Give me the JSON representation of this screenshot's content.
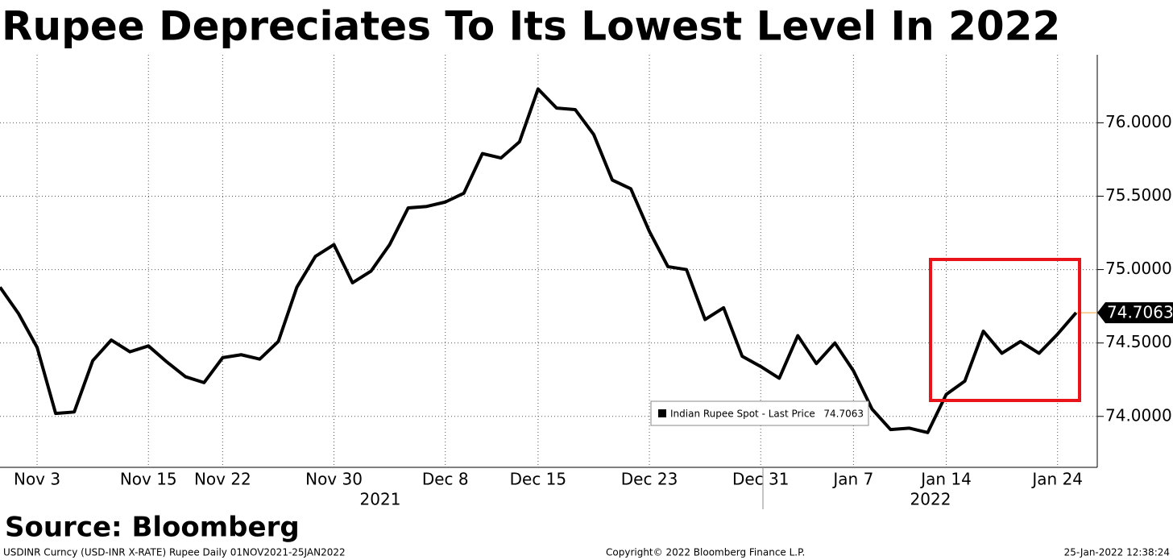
{
  "chart_data": {
    "type": "line",
    "title": "Rupee Depreciates To Its Lowest Level In 2022",
    "source": "Source: Bloomberg",
    "footer_left": "USDINR Curncy (USD-INR X-RATE) Rupee  Daily 01NOV2021-25JAN2022",
    "footer_center": "Copyright© 2022 Bloomberg Finance L.P.",
    "footer_right": "25-Jan-2022 12:38:24",
    "year_labels": [
      "2021",
      "2022"
    ],
    "categories": [
      null,
      null,
      "Nov 3",
      null,
      null,
      null,
      null,
      null,
      "Nov 15",
      null,
      null,
      null,
      "Nov 22",
      null,
      null,
      null,
      null,
      null,
      "Nov 30",
      null,
      null,
      null,
      null,
      null,
      "Dec 8",
      null,
      null,
      null,
      null,
      "Dec 15",
      null,
      null,
      null,
      null,
      null,
      "Dec 23",
      null,
      null,
      null,
      null,
      null,
      "Dec 31",
      null,
      null,
      null,
      null,
      "Jan 7",
      null,
      null,
      null,
      null,
      "Jan 14",
      null,
      null,
      null,
      null,
      null,
      "Jan 24",
      null
    ],
    "series": [
      {
        "name": "Indian Rupee Spot - Last Price",
        "color": "#000000",
        "values": [
          74.88,
          74.7,
          74.47,
          74.02,
          74.03,
          74.38,
          74.52,
          74.44,
          74.48,
          74.37,
          74.27,
          74.23,
          74.4,
          74.42,
          74.39,
          74.51,
          74.88,
          75.09,
          75.17,
          74.91,
          74.99,
          75.17,
          75.42,
          75.43,
          75.46,
          75.52,
          75.79,
          75.76,
          75.87,
          76.23,
          76.1,
          76.09,
          75.92,
          75.61,
          75.55,
          75.26,
          75.02,
          75.0,
          74.66,
          74.74,
          74.41,
          74.34,
          74.26,
          74.55,
          74.36,
          74.5,
          74.31,
          74.05,
          73.91,
          73.92,
          73.89,
          74.15,
          74.24,
          74.58,
          74.43,
          74.51,
          74.43,
          74.56,
          74.7063
        ]
      }
    ],
    "ylim": [
      73.653,
      76.463
    ],
    "yticks": [
      {
        "value": 74,
        "label": "74.0000"
      },
      {
        "value": 74.5,
        "label": "74.5000"
      },
      {
        "value": 75,
        "label": "75.0000"
      },
      {
        "value": 75.5,
        "label": "75.5000"
      },
      {
        "value": 76,
        "label": "76.0000"
      }
    ],
    "grid": true,
    "highlight_color": "#e8141a"
  }
}
